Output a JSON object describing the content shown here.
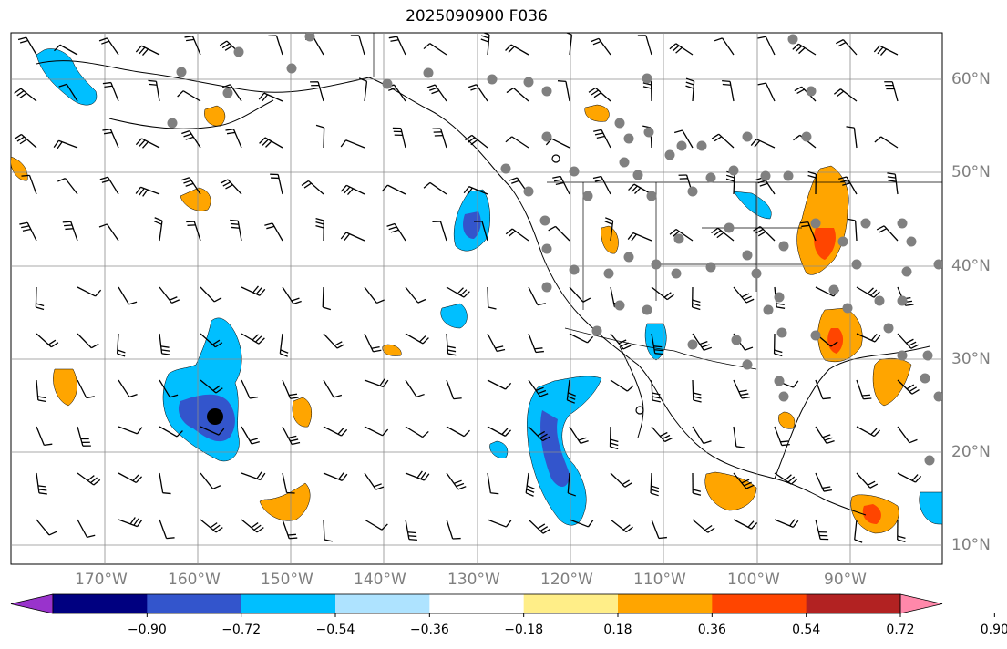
{
  "title": "2025090900 F036",
  "lat_labels": [
    "60°N",
    "50°N",
    "40°N",
    "30°N",
    "20°N",
    "10°N"
  ],
  "lon_labels": [
    "170°W",
    "160°W",
    "150°W",
    "140°W",
    "130°W",
    "120°W",
    "110°W",
    "100°W",
    "90°W"
  ],
  "colorbar": {
    "ticks": [
      "−0.90",
      "−0.72",
      "−0.54",
      "−0.36",
      "−0.18",
      "0.18",
      "0.36",
      "0.54",
      "0.72",
      "0.90"
    ],
    "colors": [
      "#9933cc",
      "#000080",
      "#3355cc",
      "#00bfff",
      "#aee3ff",
      "#ffffff",
      "#ffee88",
      "#ffa500",
      "#ff4500",
      "#b22222",
      "#ff88aa"
    ]
  },
  "map": {
    "lon_range": [
      -180,
      -80
    ],
    "lat_range": [
      8,
      65
    ],
    "grid": true
  }
}
